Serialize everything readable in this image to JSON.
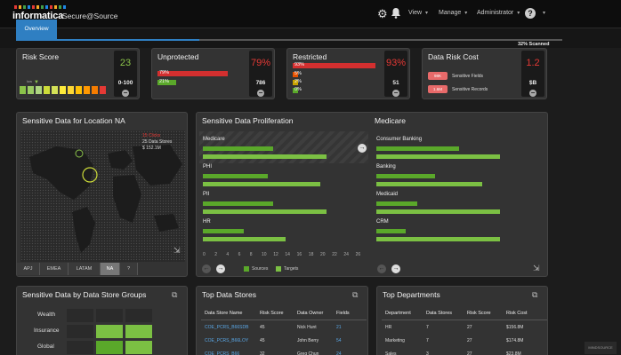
{
  "header": {
    "logo_text": "informatica",
    "product": "Secure@Source",
    "menu": {
      "view": "View",
      "manage": "Manage",
      "user": "Administrator"
    },
    "icons": [
      "gear-icon",
      "bell-icon",
      "help-icon"
    ]
  },
  "tabs": {
    "overview": "Overview"
  },
  "scan": {
    "label": "32% Scanned",
    "percent": 32
  },
  "colors": {
    "accent": "#2f7fc2",
    "risk_red": "#e53935",
    "source_green": "#5aa82a",
    "target_green": "#7bc043"
  },
  "risk_score": {
    "title": "Risk Score",
    "value": "23",
    "range": "0-100",
    "marker": "low",
    "cell_colors": [
      "#8bc34a",
      "#9ccc65",
      "#aed581",
      "#cddc39",
      "#d4e157",
      "#ffeb3b",
      "#fdd835",
      "#ffc107",
      "#ff9800",
      "#f57c00",
      "#e53935"
    ]
  },
  "unprotected": {
    "title": "Unprotected",
    "value": "79%",
    "count": "786",
    "bars": [
      {
        "label": "79%",
        "percent": 79,
        "color": "#d32f2f"
      },
      {
        "label": "21%",
        "percent": 21,
        "color": "#5aa82a"
      }
    ]
  },
  "restricted": {
    "title": "Restricted",
    "value": "93%",
    "count": "51",
    "bars": [
      {
        "label": "93%",
        "percent": 93,
        "color": "#d32f2f"
      },
      {
        "label": "5%",
        "percent": 5,
        "color": "#e65100"
      },
      {
        "label": "2%",
        "percent": 2,
        "color": "#c8a200"
      },
      {
        "label": "0%",
        "percent": 0,
        "color": "#5aa82a"
      }
    ]
  },
  "data_risk_cost": {
    "title": "Data Risk Cost",
    "value": "1.2",
    "unit": "$B",
    "items": [
      {
        "badge": "98K",
        "label": "Sensitive Fields"
      },
      {
        "badge": "1.6M",
        "label": "Sensitive Records"
      }
    ]
  },
  "location": {
    "title": "Sensitive Data for Location NA",
    "tooltip": {
      "title": "15 Clicks",
      "line1": "25 Data Stores",
      "line2": "$ 152.1M"
    },
    "regions": [
      {
        "label": "APJ"
      },
      {
        "label": "EMEA"
      },
      {
        "label": "LATAM"
      },
      {
        "label": "NA",
        "active": true
      },
      {
        "label": "?"
      }
    ]
  },
  "proliferation": {
    "title": "Sensitive Data Proliferation",
    "subtitle": "Medicare",
    "axis_ticks": [
      "0",
      "2",
      "4",
      "6",
      "8",
      "10",
      "12",
      "14",
      "16",
      "18",
      "20",
      "22",
      "24",
      "26"
    ],
    "axis_max": 26,
    "legend": {
      "sources": "Sources",
      "targets": "Targets"
    },
    "left": [
      {
        "label": "Medicare",
        "sources": 12,
        "targets": 21,
        "selected": true
      },
      {
        "label": "PHI",
        "sources": 11,
        "targets": 20
      },
      {
        "label": "PII",
        "sources": 12,
        "targets": 21
      },
      {
        "label": "HR",
        "sources": 7,
        "targets": 14
      }
    ],
    "right": [
      {
        "label": "Consumer Banking",
        "sources": 14,
        "targets": 21
      },
      {
        "label": "Banking",
        "sources": 10,
        "targets": 18
      },
      {
        "label": "Medicaid",
        "sources": 7,
        "targets": 21
      },
      {
        "label": "CRM",
        "sources": 5,
        "targets": 21
      }
    ]
  },
  "groups": {
    "title": "Sensitive Data by Data Store Groups",
    "rows": [
      {
        "label": "Wealth",
        "levels": [
          0,
          0,
          0
        ]
      },
      {
        "label": "Insurance",
        "levels": [
          0,
          2,
          2
        ]
      },
      {
        "label": "Global",
        "levels": [
          0,
          1,
          2
        ]
      }
    ]
  },
  "top_data_stores": {
    "title": "Top Data Stores",
    "columns": [
      "Data Store Name",
      "Risk Score",
      "Data Owner",
      "Fields"
    ],
    "rows": [
      [
        "COE_PCRS_B66SDB",
        "45",
        "Nick Hunt",
        "21"
      ],
      [
        "COE_PCRS_B66LOY",
        "45",
        "John Berry",
        "54"
      ],
      [
        "COE_PCRS_B66",
        "32",
        "Greg Chun",
        "24"
      ]
    ]
  },
  "top_departments": {
    "title": "Top Departments",
    "columns": [
      "Department",
      "Data Stores",
      "Risk Score",
      "Risk Cost"
    ],
    "rows": [
      [
        "HR",
        "7",
        "27",
        "$156.8M"
      ],
      [
        "Marketing",
        "7",
        "27",
        "$174.8M"
      ],
      [
        "Sales",
        "3",
        "27",
        "$23.8M"
      ]
    ]
  },
  "watermark": "MINDSOURCE"
}
